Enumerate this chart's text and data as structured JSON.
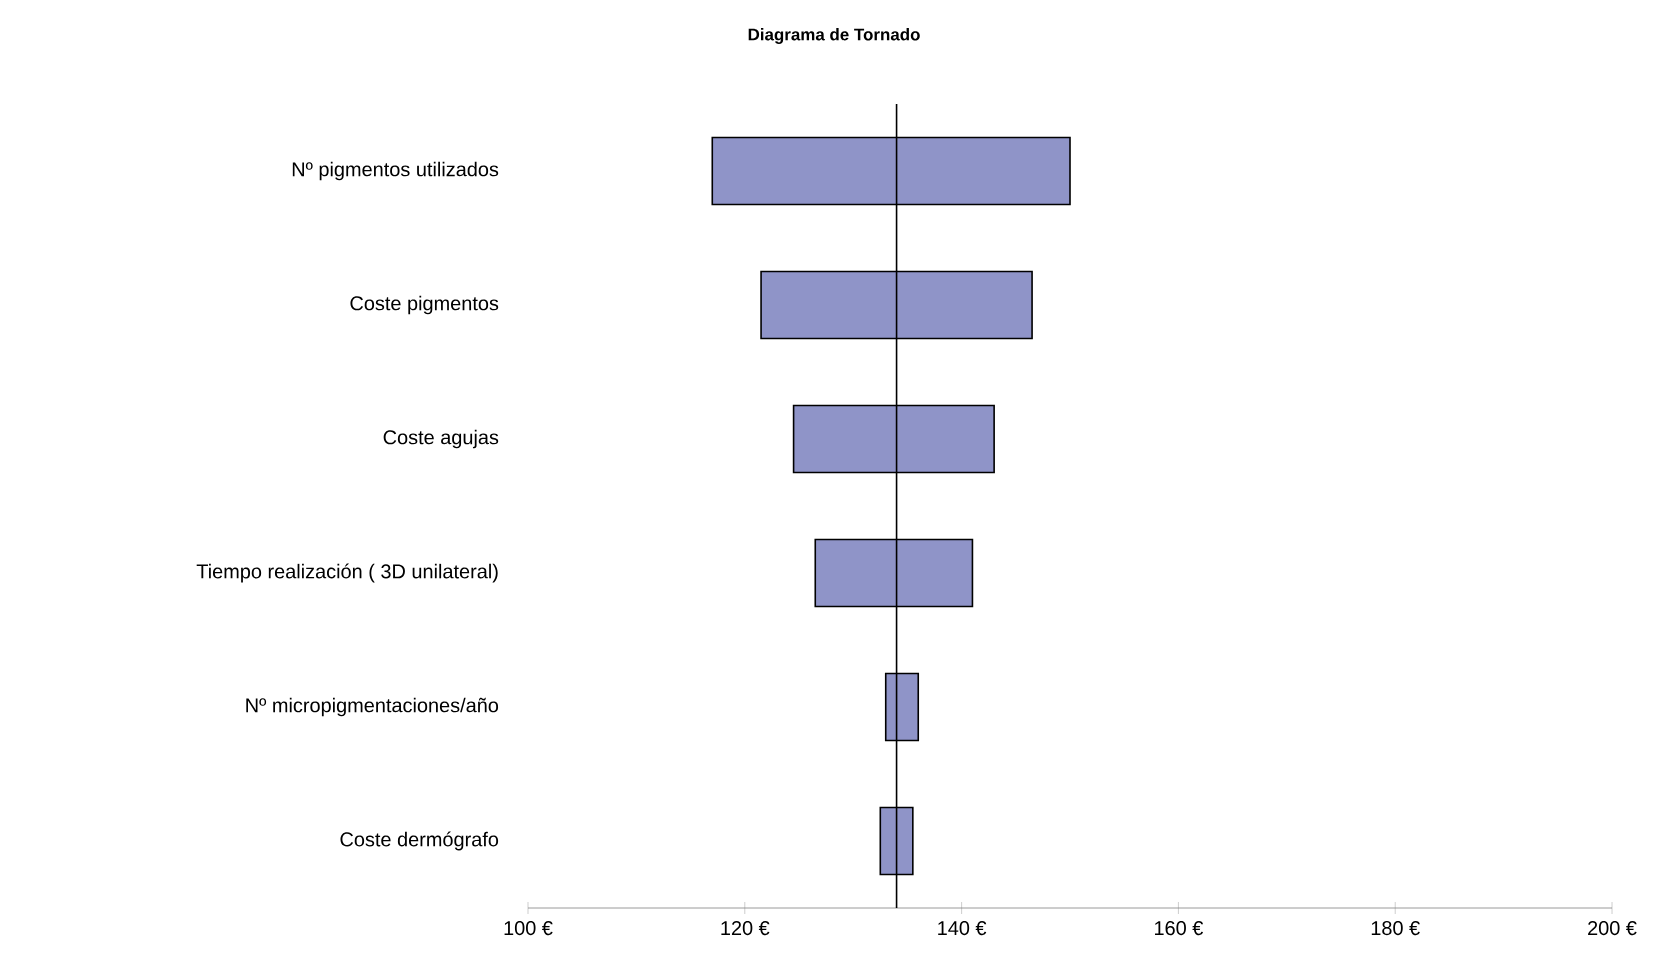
{
  "chart_data": {
    "type": "bar",
    "orientation": "horizontal",
    "title": "Diagrama de Tornado",
    "categories": [
      "Nº pigmentos utilizados",
      "Coste pigmentos",
      "Coste agujas",
      "Tiempo realización ( 3D unilateral)",
      "Nº micropigmentaciones/año",
      "Coste dermógrafo"
    ],
    "base": [
      117,
      121.5,
      124.5,
      126.5,
      133,
      132.5
    ],
    "values": [
      33,
      25,
      18.5,
      14.5,
      3,
      3
    ],
    "color": "#8f94c8",
    "xlim": [
      100,
      200
    ],
    "xticks": [
      {
        "value": 100,
        "label": "100 €"
      },
      {
        "value": 120,
        "label": "120 €"
      },
      {
        "value": 140,
        "label": "140 €"
      },
      {
        "value": 160,
        "label": "160 €"
      },
      {
        "value": 180,
        "label": "180 €"
      },
      {
        "value": 200,
        "label": "200 €"
      }
    ],
    "ref_lines": [
      {
        "axis": "x",
        "value": 134
      }
    ]
  }
}
